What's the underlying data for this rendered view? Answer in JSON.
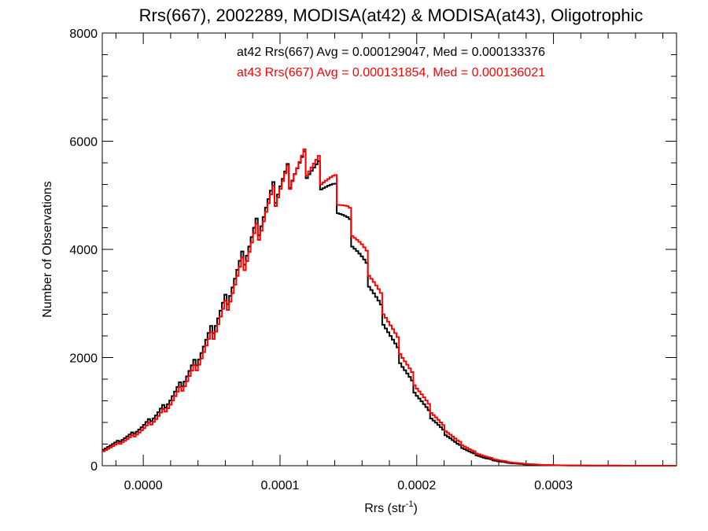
{
  "chart_data": {
    "type": "line",
    "title": "Rrs(667), 2002289, MODISA(at42) & MODISA(at43), Oligotrophic",
    "xlabel": "Rrs (str",
    "xlabel_superscript": "-1",
    "xlabel_close": ")",
    "ylabel": "Number of Observations",
    "xlim": [
      -3e-05,
      0.00039
    ],
    "ylim": [
      0,
      8000
    ],
    "x_ticks": [
      {
        "value": 0.0,
        "label": "0.0000"
      },
      {
        "value": 0.0001,
        "label": "0.0001"
      },
      {
        "value": 0.0002,
        "label": "0.0002"
      },
      {
        "value": 0.0003,
        "label": "0.0003"
      }
    ],
    "y_ticks": [
      {
        "value": 0,
        "label": "0"
      },
      {
        "value": 2000,
        "label": "2000"
      },
      {
        "value": 4000,
        "label": "4000"
      },
      {
        "value": 6000,
        "label": "6000"
      },
      {
        "value": 8000,
        "label": "8000"
      }
    ],
    "grid": false,
    "legend_position": "top-center",
    "annotations": [
      {
        "text": "at42 Rrs(667) Avg = 0.000129047, Med = 0.000133376",
        "color": "#000000"
      },
      {
        "text": "at43 Rrs(667) Avg = 0.000131854, Med = 0.000136021",
        "color": "#ff0000"
      }
    ],
    "series": [
      {
        "color": "#000000",
        "stat": "at42",
        "points": [
          [
            -3e-05,
            300
          ],
          [
            -2e-05,
            420
          ],
          [
            -1e-05,
            560
          ],
          [
            0.0,
            730
          ],
          [
            1e-05,
            950
          ],
          [
            2e-05,
            1230
          ],
          [
            3e-05,
            1580
          ],
          [
            4e-05,
            1990
          ],
          [
            5e-05,
            2480
          ],
          [
            6e-05,
            3030
          ],
          [
            7e-05,
            3630
          ],
          [
            8e-05,
            4230
          ],
          [
            9e-05,
            4780
          ],
          [
            0.0001,
            5200
          ],
          [
            0.00011,
            5480
          ],
          [
            0.00012,
            5550
          ],
          [
            0.00013,
            5380
          ],
          [
            0.00014,
            5000
          ],
          [
            0.00015,
            4450
          ],
          [
            0.00016,
            3800
          ],
          [
            0.00017,
            3120
          ],
          [
            0.00018,
            2450
          ],
          [
            0.00019,
            1850
          ],
          [
            0.0002,
            1340
          ],
          [
            0.00021,
            930
          ],
          [
            0.00022,
            620
          ],
          [
            0.00023,
            390
          ],
          [
            0.00024,
            240
          ],
          [
            0.00025,
            140
          ],
          [
            0.00026,
            80
          ],
          [
            0.00027,
            45
          ],
          [
            0.00028,
            25
          ],
          [
            0.00029,
            14
          ],
          [
            0.0003,
            8
          ],
          [
            0.00031,
            5
          ],
          [
            0.00032,
            3
          ],
          [
            0.00033,
            2
          ],
          [
            0.00034,
            1
          ],
          [
            0.00035,
            1
          ],
          [
            0.00036,
            0
          ],
          [
            0.00037,
            0
          ],
          [
            0.00038,
            0
          ],
          [
            0.00039,
            0
          ]
        ]
      },
      {
        "color": "#ff0000",
        "stat": "at43",
        "points": [
          [
            -3e-05,
            270
          ],
          [
            -2e-05,
            380
          ],
          [
            -1e-05,
            510
          ],
          [
            0.0,
            670
          ],
          [
            1e-05,
            880
          ],
          [
            2e-05,
            1150
          ],
          [
            3e-05,
            1490
          ],
          [
            4e-05,
            1890
          ],
          [
            5e-05,
            2370
          ],
          [
            6e-05,
            2920
          ],
          [
            7e-05,
            3520
          ],
          [
            8e-05,
            4130
          ],
          [
            9e-05,
            4700
          ],
          [
            0.0001,
            5150
          ],
          [
            0.00011,
            5470
          ],
          [
            0.00012,
            5600
          ],
          [
            0.00013,
            5480
          ],
          [
            0.00014,
            5150
          ],
          [
            0.00015,
            4650
          ],
          [
            0.00016,
            4020
          ],
          [
            0.00017,
            3330
          ],
          [
            0.00018,
            2650
          ],
          [
            0.00019,
            2020
          ],
          [
            0.0002,
            1480
          ],
          [
            0.00021,
            1040
          ],
          [
            0.00022,
            700
          ],
          [
            0.00023,
            450
          ],
          [
            0.00024,
            280
          ],
          [
            0.00025,
            170
          ],
          [
            0.00026,
            100
          ],
          [
            0.00027,
            58
          ],
          [
            0.00028,
            33
          ],
          [
            0.00029,
            18
          ],
          [
            0.0003,
            10
          ],
          [
            0.00031,
            6
          ],
          [
            0.00032,
            4
          ],
          [
            0.00033,
            2
          ],
          [
            0.00034,
            1
          ],
          [
            0.00035,
            1
          ],
          [
            0.00036,
            0
          ],
          [
            0.00037,
            0
          ],
          [
            0.00038,
            0
          ],
          [
            0.00039,
            0
          ]
        ]
      }
    ]
  }
}
